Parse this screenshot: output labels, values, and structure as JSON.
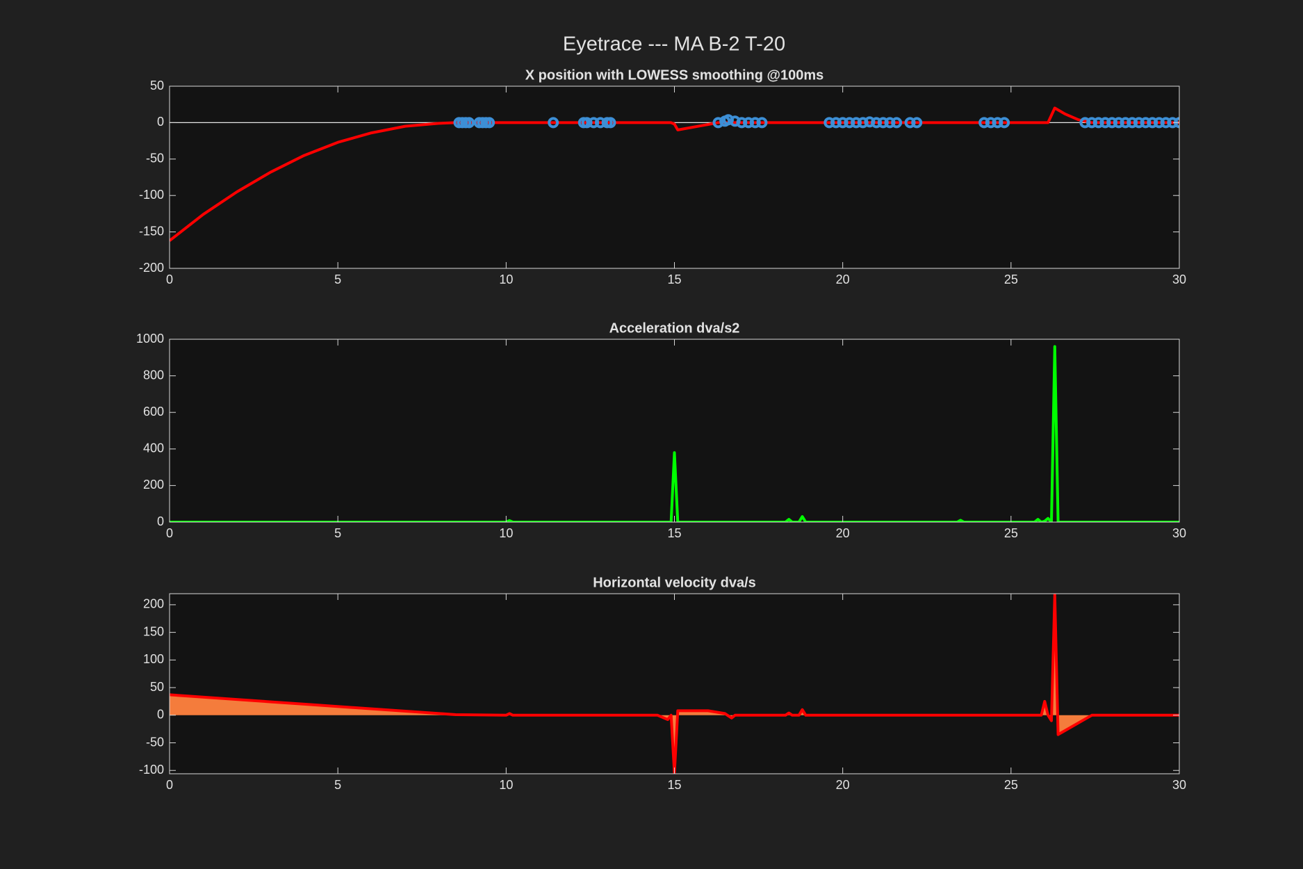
{
  "figure_title": "Eyetrace --- MA B-2 T-20",
  "chart_data": [
    {
      "type": "line",
      "title": "X position with LOWESS smoothing @100ms",
      "xlim": [
        0,
        30
      ],
      "xticks": [
        0,
        5,
        10,
        15,
        20,
        25,
        30
      ],
      "ylim": [
        -200,
        50
      ],
      "yticks": [
        -200,
        -150,
        -100,
        -50,
        0,
        50
      ],
      "zero_line": true,
      "series": [
        {
          "mode": "line",
          "color": "#ff0000",
          "x": [
            0,
            1,
            2,
            3,
            4,
            5,
            6,
            7,
            8,
            8.5,
            14.9,
            15.0,
            15.1,
            16.3,
            26.1,
            26.3,
            26.6,
            27.0,
            27.4,
            30
          ],
          "values": [
            -162,
            -126,
            -95,
            -68,
            -45,
            -27,
            -14,
            -5,
            -1,
            0,
            0,
            -2,
            -10,
            0,
            0,
            20,
            12,
            4,
            0,
            0
          ]
        },
        {
          "mode": "markers",
          "color": "#3d8fd6",
          "x": [
            8.6,
            8.7,
            8.8,
            8.9,
            9.2,
            9.3,
            9.4,
            9.5,
            11.4,
            12.3,
            12.4,
            12.6,
            12.8,
            13.0,
            13.1,
            16.3,
            16.5,
            16.6,
            16.8,
            17.0,
            17.2,
            17.4,
            17.6,
            19.6,
            19.8,
            20.0,
            20.2,
            20.4,
            20.6,
            20.8,
            21.0,
            21.2,
            21.4,
            21.6,
            22.0,
            22.2,
            24.2,
            24.4,
            24.6,
            24.8,
            27.2,
            27.4,
            27.6,
            27.8,
            28.0,
            28.2,
            28.4,
            28.6,
            28.8,
            29.0,
            29.2,
            29.4,
            29.6,
            29.8,
            30.0
          ],
          "values": [
            0,
            0,
            0,
            0,
            0,
            0,
            0,
            0,
            0,
            0,
            0,
            0,
            0,
            0,
            0,
            0,
            2,
            4,
            2,
            0,
            0,
            0,
            0,
            0,
            0,
            0,
            0,
            0,
            0,
            1,
            0,
            0,
            0,
            0,
            0,
            0,
            0,
            0,
            0,
            0,
            0,
            0,
            0,
            0,
            0,
            0,
            0,
            0,
            0,
            0,
            0,
            0,
            0,
            0,
            0
          ]
        }
      ]
    },
    {
      "type": "line",
      "title": "Acceleration dva/s2",
      "xlim": [
        0,
        30
      ],
      "xticks": [
        0,
        5,
        10,
        15,
        20,
        25,
        30
      ],
      "ylim": [
        0,
        1000
      ],
      "yticks": [
        0,
        200,
        400,
        600,
        800,
        1000
      ],
      "series": [
        {
          "mode": "line",
          "color": "#00ff00",
          "x": [
            0,
            10.0,
            10.1,
            10.2,
            14.9,
            15.0,
            15.1,
            18.3,
            18.4,
            18.5,
            18.7,
            18.8,
            18.9,
            23.4,
            23.5,
            23.6,
            25.7,
            25.8,
            25.9,
            26.0,
            26.1,
            26.2,
            26.3,
            26.4,
            30
          ],
          "values": [
            0,
            0,
            8,
            0,
            0,
            380,
            0,
            0,
            15,
            0,
            0,
            30,
            0,
            0,
            10,
            0,
            0,
            15,
            0,
            5,
            20,
            0,
            960,
            0,
            0
          ]
        }
      ]
    },
    {
      "type": "area",
      "title": "Horizontal velocity dva/s",
      "xlim": [
        0,
        30
      ],
      "xticks": [
        0,
        5,
        10,
        15,
        20,
        25,
        30
      ],
      "ylim": [
        -106,
        220
      ],
      "yticks": [
        -100,
        -50,
        0,
        50,
        100,
        150,
        200
      ],
      "series": [
        {
          "mode": "line",
          "color": "#ff0000",
          "fill": "#f47c3c",
          "x": [
            0,
            4,
            8.5,
            10.0,
            10.1,
            10.2,
            14.5,
            14.8,
            14.9,
            15.0,
            15.1,
            16.0,
            16.5,
            16.7,
            16.8,
            18.3,
            18.4,
            18.5,
            18.7,
            18.8,
            18.9,
            25.9,
            26.0,
            26.1,
            26.2,
            26.3,
            26.4,
            27.4,
            30
          ],
          "values": [
            37,
            20,
            1,
            0,
            3,
            0,
            0,
            -8,
            0,
            -105,
            8,
            8,
            3,
            -5,
            0,
            0,
            4,
            0,
            0,
            10,
            0,
            0,
            25,
            0,
            -10,
            218,
            -35,
            0,
            0
          ]
        }
      ]
    }
  ]
}
